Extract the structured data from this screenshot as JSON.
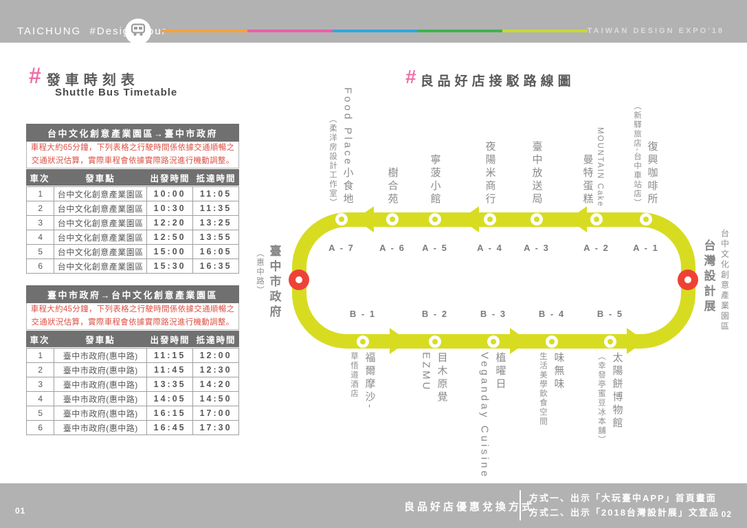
{
  "header": {
    "brand_left": "TAICHUNG  #Design Tour",
    "brand_right": "TAIWAN DESIGN EXPO'18",
    "rainbow_colors": [
      "#f7a13c",
      "#ee5da4",
      "#29a9e1",
      "#3bb54a",
      "#c9d932"
    ]
  },
  "timetable": {
    "hash": "#",
    "title": "發車時刻表",
    "subtitle": "Shuttle Bus Timetable",
    "tables": [
      {
        "title": "台中文化創意產業園區→臺中市政府",
        "note": [
          "車程大約65分鐘，下列表格之行駛時間係依據交通順暢之",
          "交通狀況估算，實際車程會依據實際路況進行機動調整。"
        ],
        "columns": [
          "車次",
          "發車點",
          "出發時間",
          "抵達時間"
        ],
        "rows": [
          [
            "1",
            "台中文化創意產業園區",
            "10:00",
            "11:05"
          ],
          [
            "2",
            "台中文化創意產業園區",
            "10:30",
            "11:35"
          ],
          [
            "3",
            "台中文化創意產業園區",
            "12:20",
            "13:25"
          ],
          [
            "4",
            "台中文化創意產業園區",
            "12:50",
            "13:55"
          ],
          [
            "5",
            "台中文化創意產業園區",
            "15:00",
            "16:05"
          ],
          [
            "6",
            "台中文化創意產業園區",
            "15:30",
            "16:35"
          ]
        ]
      },
      {
        "title": "臺中市政府→台中文化創意產業園區",
        "note": [
          "車程大約45分鐘，下列表格之行駛時間係依據交通順暢之",
          "交通狀況估算，實際車程會依據實際路況進行機動調整。"
        ],
        "columns": [
          "車次",
          "發車點",
          "出發時間",
          "抵達時間"
        ],
        "rows": [
          [
            "1",
            "臺中市政府(惠中路)",
            "11:15",
            "12:00"
          ],
          [
            "2",
            "臺中市政府(惠中路)",
            "11:45",
            "12:30"
          ],
          [
            "3",
            "臺中市政府(惠中路)",
            "13:35",
            "14:20"
          ],
          [
            "4",
            "臺中市政府(惠中路)",
            "14:05",
            "14:50"
          ],
          [
            "5",
            "臺中市政府(惠中路)",
            "16:15",
            "17:00"
          ],
          [
            "6",
            "臺中市政府(惠中路)",
            "16:45",
            "17:30"
          ]
        ]
      }
    ]
  },
  "route_map": {
    "hash": "#",
    "title": "良品好店接駁路線圖",
    "left_terminal": {
      "name": "臺中市政府",
      "sub": "（惠中路）"
    },
    "right_terminal": {
      "name": "台灣設計展",
      "sub": "台中文化創意產業園區"
    },
    "top_stops": [
      {
        "code": "A - 7",
        "name": "Food Place小食地",
        "sub": "（柔洋房設計工作室）",
        "sub_side": "left"
      },
      {
        "code": "A - 6",
        "name": "樹合苑",
        "sub": "",
        "sub_side": ""
      },
      {
        "code": "A - 5",
        "name": "寧菠小館",
        "sub": "",
        "sub_side": ""
      },
      {
        "code": "A - 4",
        "name": "夜陽米商行",
        "sub": "",
        "sub_side": ""
      },
      {
        "code": "A - 3",
        "name": "臺中放送局",
        "sub": "",
        "sub_side": ""
      },
      {
        "code": "A - 2",
        "name": "曼特蛋糕",
        "sub": "MOUNTAIN Cake",
        "sub_side": "right"
      },
      {
        "code": "A - 1",
        "name": "復興咖啡所",
        "sub": "（新驛旅店-台中車站店）",
        "sub_side": "left"
      }
    ],
    "bottom_stops": [
      {
        "code": "B - 1",
        "name": "福爾摩沙-",
        "sub": "草悟道酒店",
        "sub_side": "left"
      },
      {
        "code": "B - 2",
        "name": "目木原覺",
        "sub": "EZMU",
        "sub_side": "left"
      },
      {
        "code": "B - 3",
        "name": "植曜日",
        "sub": "Veganday Cuisine",
        "sub_side": "left"
      },
      {
        "code": "B - 4",
        "name": "味無味",
        "sub": "生活美學飲食空間",
        "sub_side": "left"
      },
      {
        "code": "B - 5",
        "name": "太陽餅博物館",
        "sub": "（幸發亭蜜豆冰本舖）",
        "sub_side": "left"
      }
    ],
    "colors": {
      "loop": "#d7dc21",
      "terminal_stop": "#ee4237",
      "hash_pink": "#ee6fa8"
    }
  },
  "footer": {
    "page_left": "01",
    "page_right": "02",
    "redeem_title": "良品好店優惠兌換方式",
    "method1": "方式一、出示「大玩臺中APP」首頁畫面",
    "method2": "方式二、出示「2018台灣設計展」文宣品"
  }
}
